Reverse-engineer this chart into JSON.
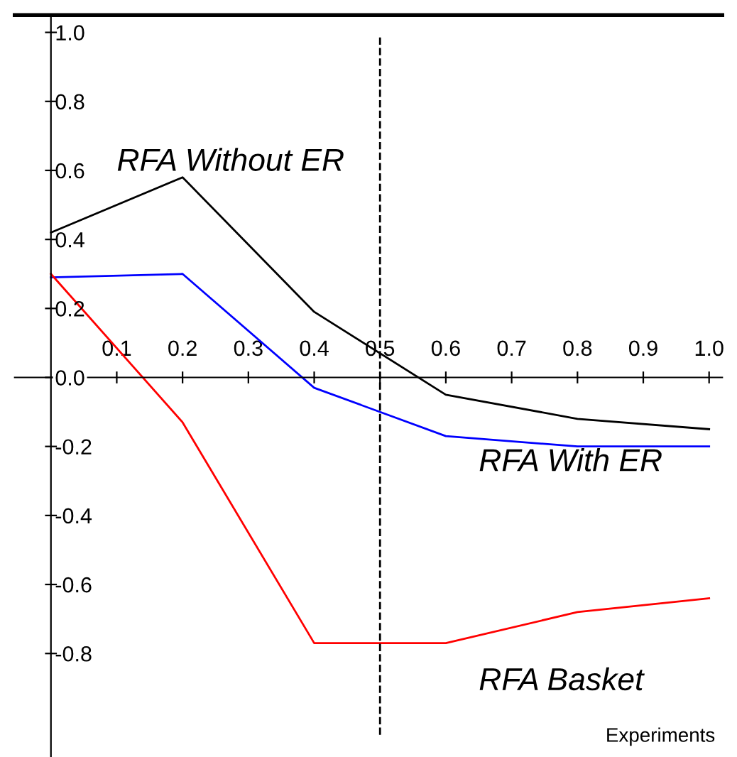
{
  "chart_data": {
    "type": "line",
    "xlabel": "Experiments",
    "x": [
      0,
      0.2,
      0.4,
      0.6,
      0.8,
      1.0
    ],
    "series": [
      {
        "name": "RFA Without ER",
        "color": "#000000",
        "values": [
          0.42,
          0.58,
          0.19,
          -0.05,
          -0.12,
          -0.15
        ]
      },
      {
        "name": "RFA With ER",
        "color": "#0000ff",
        "values": [
          0.29,
          0.3,
          -0.03,
          -0.17,
          -0.2,
          -0.2
        ]
      },
      {
        "name": "RFA Basket",
        "color": "#ff0000",
        "values": [
          0.3,
          -0.13,
          -0.77,
          -0.77,
          -0.68,
          -0.64
        ]
      }
    ],
    "xlim": [
      -0.055,
      1.02
    ],
    "ylim": [
      -1.1,
      1.05
    ],
    "xticks": [
      0.1,
      0.2,
      0.3,
      0.4,
      0.5,
      0.6,
      0.7,
      0.8,
      0.9,
      {
        "value": 1,
        "label": "1.0"
      }
    ],
    "yticks": [
      -0.8,
      -0.6,
      -0.4,
      -0.2,
      {
        "value": 0,
        "label": "0.0"
      },
      0.2,
      0.4,
      0.6,
      0.8,
      {
        "value": 1,
        "label": "1.0"
      }
    ],
    "ref_lines": [
      {
        "axis": "x",
        "value": 0.5,
        "color": "#000000",
        "line_style": "dashed"
      }
    ],
    "grid": false,
    "legend": false,
    "marker": "none",
    "line_style": "solid"
  }
}
